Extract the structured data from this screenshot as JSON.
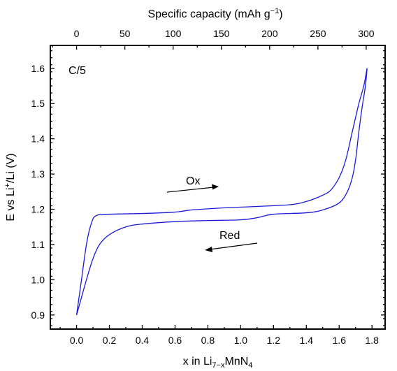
{
  "chart_data": {
    "type": "line",
    "title": "",
    "xlabel": {
      "base": "x in Li",
      "sub": "7−x",
      "mid": "MnN",
      "sub2": "4"
    },
    "x2label": {
      "base": "Specific capacity (mAh g",
      "sup": "−1",
      "end": ")"
    },
    "ylabel": {
      "base": "E vs Li",
      "sup": "+",
      "end": "/Li (V)"
    },
    "xlim": [
      -0.16,
      1.88
    ],
    "ylim": [
      0.86,
      1.665
    ],
    "x2lim": [
      -27.2,
      319.6
    ],
    "xticks": [
      0.0,
      0.2,
      0.4,
      0.6,
      0.8,
      1.0,
      1.2,
      1.4,
      1.6,
      1.8
    ],
    "xtick_labels": [
      "0.0",
      "0.2",
      "0.4",
      "0.6",
      "0.8",
      "1.0",
      "1.2",
      "1.4",
      "1.6",
      "1.8"
    ],
    "x2ticks": [
      0,
      50,
      100,
      150,
      200,
      250,
      300
    ],
    "x2tick_labels": [
      "0",
      "50",
      "100",
      "150",
      "200",
      "250",
      "300"
    ],
    "yticks": [
      0.9,
      1.0,
      1.1,
      1.2,
      1.3,
      1.4,
      1.5,
      1.6
    ],
    "ytick_labels": [
      "0.9",
      "1.0",
      "1.1",
      "1.2",
      "1.3",
      "1.4",
      "1.5",
      "1.6"
    ],
    "grid": false,
    "line_color": "#1a1adb",
    "series": [
      {
        "points": [
          [
            0.0,
            0.9
          ],
          [
            0.03,
            1.0
          ],
          [
            0.06,
            1.1
          ],
          [
            0.09,
            1.16
          ],
          [
            0.12,
            1.182
          ],
          [
            0.2,
            1.186
          ],
          [
            0.4,
            1.188
          ],
          [
            0.6,
            1.192
          ],
          [
            0.7,
            1.198
          ],
          [
            0.9,
            1.204
          ],
          [
            1.1,
            1.208
          ],
          [
            1.3,
            1.213
          ],
          [
            1.4,
            1.222
          ],
          [
            1.5,
            1.24
          ],
          [
            1.55,
            1.255
          ],
          [
            1.6,
            1.29
          ],
          [
            1.64,
            1.34
          ],
          [
            1.68,
            1.42
          ],
          [
            1.72,
            1.5
          ],
          [
            1.75,
            1.55
          ],
          [
            1.77,
            1.6
          ]
        ]
      },
      {
        "points": [
          [
            1.77,
            1.6
          ],
          [
            1.76,
            1.55
          ],
          [
            1.74,
            1.49
          ],
          [
            1.72,
            1.42
          ],
          [
            1.7,
            1.34
          ],
          [
            1.68,
            1.29
          ],
          [
            1.65,
            1.25
          ],
          [
            1.6,
            1.218
          ],
          [
            1.5,
            1.198
          ],
          [
            1.4,
            1.19
          ],
          [
            1.2,
            1.186
          ],
          [
            1.1,
            1.176
          ],
          [
            1.0,
            1.17
          ],
          [
            0.8,
            1.168
          ],
          [
            0.6,
            1.165
          ],
          [
            0.4,
            1.158
          ],
          [
            0.3,
            1.15
          ],
          [
            0.2,
            1.128
          ],
          [
            0.14,
            1.1
          ],
          [
            0.1,
            1.06
          ],
          [
            0.06,
            1.0
          ],
          [
            0.03,
            0.95
          ],
          [
            0.0,
            0.9
          ]
        ]
      }
    ],
    "annotations": [
      {
        "text": "C/5"
      },
      {
        "text": "Ox",
        "arrow": "right"
      },
      {
        "text": "Red",
        "arrow": "left"
      }
    ]
  }
}
